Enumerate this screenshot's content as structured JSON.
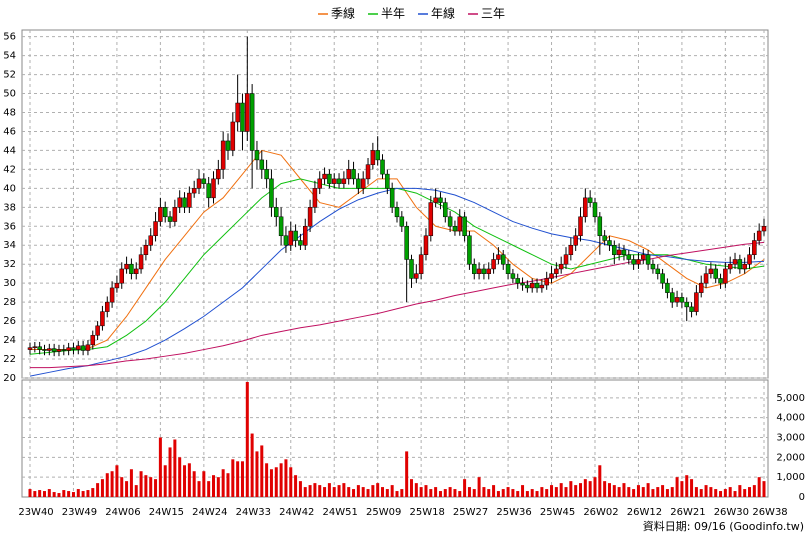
{
  "chart_data": {
    "type": "candlestick",
    "categories": [
      "23W40",
      null,
      null,
      null,
      null,
      null,
      null,
      null,
      null,
      "23W49",
      null,
      null,
      null,
      null,
      null,
      null,
      null,
      null,
      "24W06",
      null,
      null,
      null,
      null,
      null,
      null,
      null,
      null,
      "24W15",
      null,
      null,
      null,
      null,
      null,
      null,
      null,
      null,
      "24W24",
      null,
      null,
      null,
      null,
      null,
      null,
      null,
      null,
      "24W33",
      null,
      null,
      null,
      null,
      null,
      null,
      null,
      null,
      "24W42",
      null,
      null,
      null,
      null,
      null,
      null,
      null,
      null,
      "24W51",
      null,
      null,
      null,
      null,
      null,
      null,
      null,
      null,
      "25W09",
      null,
      null,
      null,
      null,
      null,
      null,
      null,
      null,
      "25W18",
      null,
      null,
      null,
      null,
      null,
      null,
      null,
      null,
      "25W27",
      null,
      null,
      null,
      null,
      null,
      null,
      null,
      null,
      "25W36",
      null,
      null,
      null,
      null,
      null,
      null,
      null,
      null,
      "25W45",
      null,
      null,
      null,
      null,
      null,
      null,
      null,
      null,
      "26W02",
      null,
      null,
      null,
      null,
      null,
      null,
      null,
      null,
      "26W12",
      null,
      null,
      null,
      null,
      null,
      null,
      null,
      null,
      "26W21",
      null,
      null,
      null,
      null,
      null,
      null,
      null,
      null,
      "26W30",
      null,
      null,
      null,
      null,
      null,
      null,
      null,
      "26W38"
    ],
    "open": [
      23.0,
      23.2,
      23.3,
      23.0,
      22.9,
      23.1,
      22.8,
      23.0,
      22.9,
      23.2,
      23.0,
      23.4,
      22.9,
      23.5,
      24.5,
      25.5,
      27,
      28,
      29.5,
      30,
      31.5,
      32,
      31,
      31.5,
      33,
      34,
      35,
      36.5,
      38,
      37,
      36.5,
      38,
      39,
      38,
      39.5,
      40,
      41,
      40.5,
      39,
      41,
      42,
      45,
      44,
      47,
      49,
      46,
      50,
      44,
      43,
      42,
      41,
      38,
      37,
      35,
      34,
      35.5,
      34.5,
      34,
      36,
      38,
      40,
      41,
      41.5,
      40.5,
      41,
      40.5,
      41,
      42,
      41,
      40,
      41,
      42.5,
      44,
      43,
      41.5,
      40,
      38,
      37,
      36,
      32.5,
      30.5,
      31,
      33,
      35,
      38.5,
      39,
      38.5,
      37,
      36,
      35.5,
      37,
      35,
      32,
      31,
      31.5,
      31,
      31.5,
      32.5,
      33,
      32,
      31,
      30.5,
      30,
      29.8,
      29.5,
      30,
      29.5,
      29.8,
      30.5,
      31,
      31.5,
      32,
      33,
      34,
      35,
      37,
      39,
      38.5,
      37,
      35,
      34.5,
      34,
      33,
      33.5,
      33,
      32.5,
      32,
      32.5,
      33,
      32,
      31.5,
      31,
      30,
      29,
      28,
      28.5,
      28,
      27.5,
      27,
      29,
      30,
      31,
      31.5,
      30.5,
      30,
      31.5,
      32,
      32.5,
      31.5,
      32,
      33,
      34.5,
      35.5
    ],
    "high": [
      23.7,
      23.8,
      23.8,
      23.5,
      23.6,
      23.6,
      23.5,
      23.5,
      23.7,
      23.7,
      23.9,
      23.9,
      24,
      25,
      26,
      27.6,
      28.6,
      30.2,
      30.8,
      32.2,
      32.8,
      32.6,
      32.2,
      33.8,
      34.6,
      35.8,
      37.5,
      39,
      38.6,
      37.6,
      38.8,
      39.8,
      39.6,
      40.2,
      40.8,
      42,
      41.6,
      41.2,
      41.8,
      43,
      46,
      45.8,
      48,
      52,
      50,
      56,
      51,
      45,
      44,
      43,
      42,
      39,
      38,
      36,
      36.5,
      36.2,
      35.2,
      36.8,
      38.8,
      40.8,
      41.8,
      42.2,
      42,
      41.6,
      41.6,
      41.8,
      43,
      42.8,
      41.6,
      41.8,
      43.2,
      44.8,
      45.5,
      43.6,
      42,
      40.6,
      38.6,
      37.6,
      36.5,
      33,
      32,
      33.8,
      35.8,
      39.2,
      40,
      39.6,
      39,
      37.6,
      36.6,
      37.8,
      37.5,
      35.5,
      32.6,
      32.2,
      32,
      32.2,
      33.2,
      33.8,
      33.5,
      32.5,
      31.5,
      31,
      30.6,
      30.3,
      30.5,
      30.5,
      30.4,
      31.2,
      31.8,
      32.2,
      32.8,
      33.8,
      34.8,
      35.8,
      38,
      40,
      39.8,
      39,
      37.5,
      35.6,
      35,
      34.5,
      34.2,
      34,
      33.5,
      33,
      33.2,
      33.6,
      33.5,
      32.5,
      32,
      31.5,
      30.5,
      29.5,
      29.2,
      29,
      28.5,
      28,
      29.8,
      30.8,
      31.8,
      32.2,
      32,
      31,
      32.2,
      32.8,
      33.2,
      33,
      32.7,
      33.8,
      35.3,
      36.3,
      36.8
    ],
    "low": [
      22.5,
      22.7,
      22.5,
      22.4,
      22.4,
      22.3,
      22.3,
      22.4,
      22.4,
      22.5,
      22.5,
      22.4,
      22.4,
      23,
      24,
      25,
      26.4,
      27.4,
      29,
      29.4,
      31,
      30.4,
      30.4,
      31,
      32.4,
      33.4,
      34.4,
      36,
      36.4,
      35.8,
      36,
      37.4,
      37.4,
      37.4,
      39,
      39.4,
      40,
      38,
      38.4,
      40.4,
      41,
      43,
      43.4,
      46,
      44,
      45,
      40,
      42,
      41,
      40,
      37,
      36,
      34,
      33.2,
      33.4,
      33.8,
      33.5,
      33.5,
      35.4,
      37.4,
      39.4,
      40.4,
      40,
      40,
      40,
      40,
      40.4,
      40.4,
      39.4,
      39.4,
      40.4,
      42,
      42.4,
      41,
      39.4,
      37.4,
      36.4,
      35.4,
      28,
      29.5,
      30,
      30.4,
      32.4,
      34.4,
      38,
      37.8,
      36.4,
      35.4,
      35,
      35,
      34.4,
      31.4,
      30.4,
      30.4,
      30.4,
      30.4,
      31,
      32,
      31.4,
      30.4,
      30,
      29.4,
      29.2,
      29,
      29,
      29,
      29,
      29.3,
      30,
      30.5,
      31,
      31.5,
      32.4,
      33.4,
      34.4,
      36.4,
      38,
      36.4,
      33,
      34,
      33.4,
      32,
      32.4,
      32.4,
      32,
      31.4,
      31.5,
      32,
      31.4,
      31,
      30.4,
      29.4,
      28.4,
      27.4,
      27.5,
      27.4,
      26,
      26.4,
      26.6,
      28.5,
      29.5,
      30.5,
      30,
      29.4,
      29.5,
      31,
      31.5,
      31,
      31,
      31.5,
      32.5,
      34,
      35
    ],
    "close": [
      23.2,
      23.3,
      23.0,
      22.9,
      23.1,
      22.8,
      23.0,
      22.9,
      23.2,
      23.0,
      23.4,
      22.9,
      23.5,
      24.5,
      25.5,
      27,
      28,
      29.5,
      30,
      31.5,
      32,
      31,
      31.5,
      33,
      34,
      35,
      36.5,
      38,
      37,
      36.5,
      38,
      39,
      38,
      39.5,
      40,
      41,
      40.5,
      39,
      41,
      42,
      45,
      44,
      47,
      49,
      46,
      50,
      44,
      43,
      42,
      41,
      38,
      37,
      35,
      34,
      35.5,
      34.5,
      34,
      36,
      38,
      40,
      41,
      41.5,
      40.5,
      41,
      40.5,
      41,
      42,
      41,
      40,
      41,
      42.5,
      44,
      43,
      41.5,
      40,
      38,
      37,
      36,
      32.5,
      30.5,
      31,
      33,
      35,
      38.5,
      39,
      38.5,
      37,
      36,
      35.5,
      37,
      35,
      32,
      31,
      31.5,
      31,
      31.5,
      32.5,
      33,
      32,
      31,
      30.5,
      30,
      29.8,
      29.5,
      30,
      29.5,
      29.8,
      30.5,
      31,
      31.5,
      32,
      33,
      34,
      35,
      37,
      39,
      38.5,
      37,
      35,
      34.5,
      34,
      33,
      33.5,
      33,
      32.5,
      32,
      32.5,
      33,
      32,
      31.5,
      31,
      30,
      29,
      28,
      28.5,
      28,
      27.5,
      27,
      29,
      30,
      31,
      31.5,
      30.5,
      30,
      31.5,
      32,
      32.5,
      31.5,
      32,
      33,
      34.5,
      35.5,
      36
    ],
    "up_color": "#e00000",
    "down_color": "#00a000",
    "ylim": [
      20,
      56.7
    ],
    "yticks": [
      20,
      22,
      24,
      26,
      28,
      30,
      32,
      34,
      36,
      38,
      40,
      42,
      44,
      46,
      48,
      50,
      52,
      54,
      56
    ],
    "grid": true,
    "legend": "top",
    "series": [
      {
        "name": "季線",
        "color": "#f07010",
        "x": [
          0,
          4,
          8,
          12,
          16,
          20,
          24,
          28,
          32,
          36,
          40,
          44,
          48,
          52,
          56,
          60,
          64,
          68,
          72,
          76,
          80,
          84,
          88,
          92,
          96,
          100,
          104,
          108,
          112,
          116,
          120,
          124,
          128,
          132,
          136,
          140,
          144,
          148,
          152
        ],
        "values": [
          23,
          23,
          23,
          23.1,
          24,
          26.5,
          29.5,
          32.5,
          35,
          37.5,
          39,
          41.5,
          44,
          43.5,
          41,
          38.5,
          38,
          39.5,
          41,
          41,
          38,
          36,
          35.5,
          35.5,
          34,
          32,
          30.5,
          30,
          31,
          33,
          35,
          34.5,
          33.5,
          32,
          30.5,
          29.5,
          30,
          31,
          32.5
        ]
      },
      {
        "name": "半年",
        "color": "#10c010",
        "x": [
          0,
          4,
          8,
          12,
          16,
          20,
          24,
          28,
          32,
          36,
          40,
          44,
          48,
          52,
          56,
          60,
          64,
          68,
          72,
          76,
          80,
          84,
          88,
          92,
          96,
          100,
          104,
          108,
          112,
          116,
          120,
          124,
          128,
          132,
          136,
          140,
          144,
          148,
          152
        ],
        "values": [
          22.5,
          22.7,
          22.9,
          23,
          23.3,
          24.5,
          26,
          28,
          30.5,
          33,
          35,
          37,
          39,
          40.5,
          41,
          40.5,
          40,
          40,
          40,
          40,
          39.5,
          38.5,
          37.5,
          36,
          35,
          34,
          33,
          32,
          31.5,
          32,
          32.5,
          33,
          33,
          33,
          32.5,
          32,
          31.8,
          31.5,
          31.8
        ]
      },
      {
        "name": "年線",
        "color": "#2050d0",
        "x": [
          0,
          4,
          8,
          12,
          16,
          20,
          24,
          28,
          32,
          36,
          40,
          44,
          48,
          52,
          56,
          60,
          64,
          68,
          72,
          76,
          80,
          84,
          88,
          92,
          96,
          100,
          104,
          108,
          112,
          116,
          120,
          124,
          128,
          132,
          136,
          140,
          144,
          148,
          152
        ],
        "values": [
          20.2,
          20.6,
          21,
          21.3,
          21.8,
          22.3,
          23,
          24,
          25.2,
          26.5,
          28,
          29.5,
          31.5,
          33.5,
          35,
          36.5,
          37.8,
          38.8,
          39.5,
          40,
          40,
          39.8,
          39.3,
          38.5,
          37.5,
          36.5,
          35.8,
          35.2,
          34.8,
          34.5,
          34,
          33.5,
          33,
          32.8,
          32.5,
          32.3,
          32.2,
          32.2,
          32.3
        ]
      },
      {
        "name": "三年",
        "color": "#c01060",
        "x": [
          0,
          4,
          8,
          12,
          16,
          20,
          24,
          28,
          32,
          36,
          40,
          44,
          48,
          52,
          56,
          60,
          64,
          68,
          72,
          76,
          80,
          84,
          88,
          92,
          96,
          100,
          104,
          108,
          112,
          116,
          120,
          124,
          128,
          132,
          136,
          140,
          144,
          148,
          152
        ],
        "values": [
          21.1,
          21.1,
          21.2,
          21.3,
          21.5,
          21.8,
          22,
          22.3,
          22.6,
          23,
          23.4,
          23.9,
          24.5,
          24.9,
          25.3,
          25.6,
          26,
          26.4,
          26.8,
          27.3,
          27.8,
          28.2,
          28.7,
          29.1,
          29.5,
          29.9,
          30.2,
          30.6,
          31,
          31.4,
          31.8,
          32.2,
          32.5,
          32.9,
          33.2,
          33.5,
          33.8,
          34.1,
          34.3
        ]
      }
    ],
    "volume": {
      "color": "#e00000",
      "values": [
        400,
        300,
        350,
        300,
        400,
        250,
        200,
        350,
        300,
        250,
        400,
        300,
        350,
        450,
        700,
        900,
        1200,
        1300,
        1600,
        1000,
        800,
        1400,
        600,
        1300,
        1100,
        1000,
        900,
        3000,
        1600,
        2500,
        2900,
        2000,
        1600,
        1700,
        1300,
        800,
        1300,
        800,
        1100,
        1000,
        1400,
        1200,
        1900,
        1800,
        1800,
        5800,
        3200,
        2300,
        2600,
        1700,
        1400,
        1500,
        1700,
        1900,
        1500,
        1100,
        800,
        500,
        600,
        700,
        600,
        500,
        700,
        500,
        600,
        700,
        500,
        400,
        600,
        500,
        400,
        600,
        700,
        500,
        400,
        600,
        300,
        400,
        2300,
        900,
        700,
        500,
        600,
        400,
        500,
        300,
        400,
        500,
        400,
        300,
        900,
        500,
        400,
        1000,
        500,
        400,
        600,
        300,
        400,
        500,
        400,
        300,
        600,
        300,
        400,
        300,
        500,
        400,
        600,
        500,
        700,
        500,
        800,
        600,
        700,
        900,
        800,
        1000,
        1600,
        800,
        700,
        600,
        500,
        700,
        500,
        400,
        600,
        500,
        700,
        400,
        500,
        600,
        400,
        500,
        1000,
        800,
        1100,
        900,
        500,
        400,
        600,
        500,
        400,
        300,
        400,
        500,
        300,
        600,
        400,
        500,
        600,
        1000,
        800
      ],
      "ylim": [
        0,
        5900
      ],
      "yticks": [
        0,
        {
          "value": 1000,
          "label": "1,000"
        },
        {
          "value": 2000,
          "label": "2,000"
        },
        {
          "value": 3000,
          "label": "3,000"
        },
        {
          "value": 4000,
          "label": "4,000"
        },
        {
          "value": 5000,
          "label": "5,000"
        }
      ]
    },
    "source_note": "資料日期: 09/16  (Goodinfo.tw)"
  }
}
